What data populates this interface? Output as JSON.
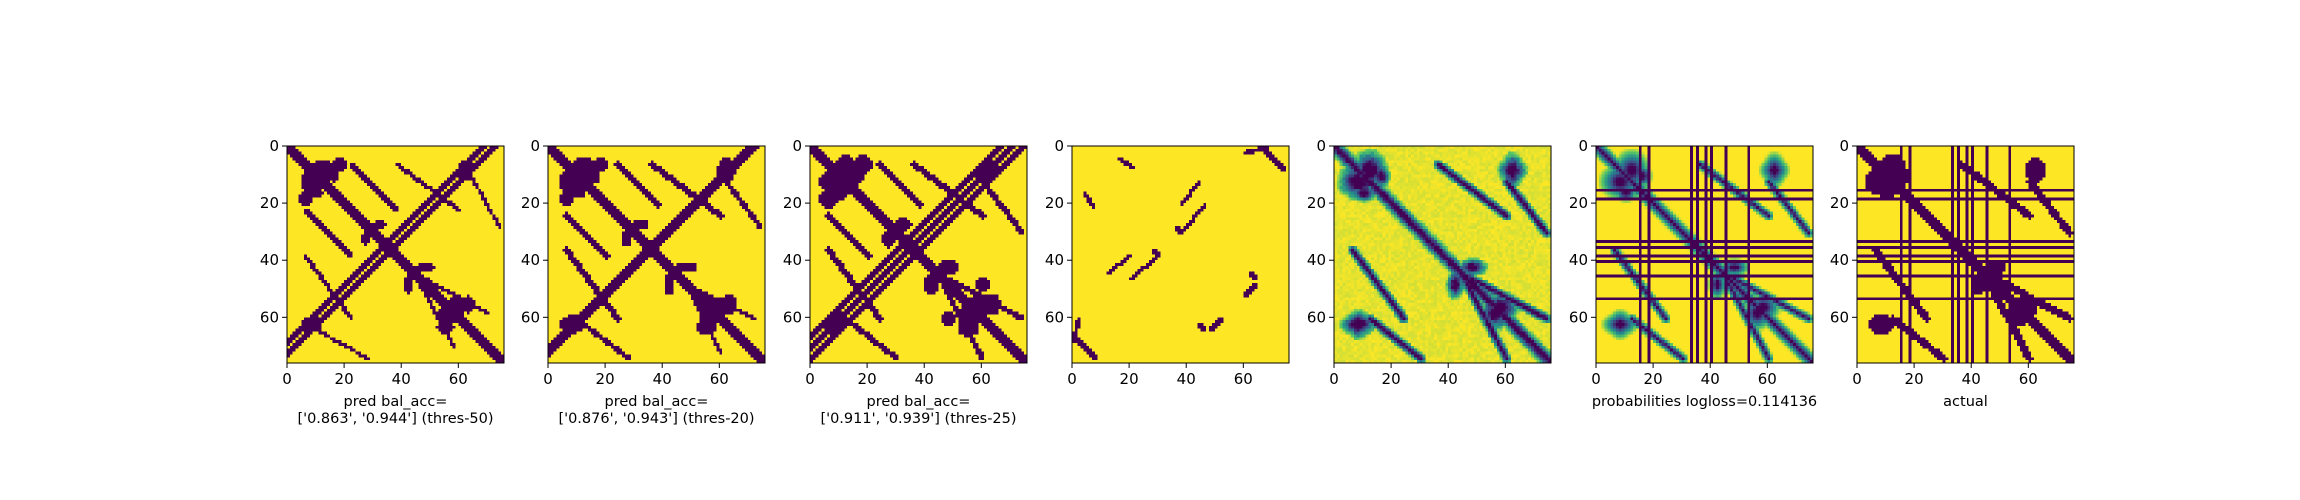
{
  "chart_data": [
    {
      "type": "heatmap",
      "colormap": "binary-viridis",
      "x_ticks": [
        "0",
        "20",
        "40",
        "60"
      ],
      "y_ticks": [
        "0",
        "20",
        "40",
        "60"
      ],
      "extent": [
        0,
        76
      ],
      "xlabel_lines": [
        "pred bal_acc=",
        "['0.863', '0.944'] (thres-50)"
      ],
      "dark_regions": {
        "diagonals": [
          [
            0,
            76,
            2.2
          ],
          [
            68,
            30,
            1.4
          ],
          [
            72,
            8,
            1.2
          ]
        ],
        "blobs": [
          [
            12,
            8,
            4.5,
            5
          ],
          [
            18,
            6,
            3,
            3
          ],
          [
            10,
            16,
            3,
            2
          ],
          [
            58,
            56,
            5,
            4
          ],
          [
            55,
            63,
            4,
            3
          ],
          [
            42,
            48,
            2,
            4
          ],
          [
            27,
            32,
            2,
            3
          ],
          [
            8,
            62,
            5,
            3
          ],
          [
            62,
            8,
            4,
            3
          ]
        ],
        "bands": [
          [
            6,
            22,
            38,
            60,
            1.2
          ],
          [
            22,
            38,
            6,
            22,
            1.2
          ],
          [
            64,
            74,
            10,
            28,
            1
          ],
          [
            44,
            58,
            44,
            70,
            1
          ]
        ]
      }
    },
    {
      "type": "heatmap",
      "colormap": "binary-viridis",
      "x_ticks": [
        "0",
        "20",
        "40",
        "60"
      ],
      "y_ticks": [
        "0",
        "20",
        "40",
        "60"
      ],
      "extent": [
        0,
        76
      ],
      "xlabel_lines": [
        "pred bal_acc=",
        "['0.876', '0.943'] (thres-20)"
      ],
      "dark_regions": {
        "diagonals": [
          [
            0,
            76,
            2.4
          ],
          [
            70,
            28,
            1.6
          ],
          [
            72,
            10,
            1.4
          ]
        ],
        "blobs": [
          [
            12,
            8,
            5,
            6
          ],
          [
            18,
            6,
            3.5,
            3.5
          ],
          [
            10,
            16,
            3.5,
            2.5
          ],
          [
            58,
            56,
            5.5,
            4.5
          ],
          [
            55,
            63,
            4.5,
            3.5
          ],
          [
            42,
            48,
            2.5,
            4.5
          ],
          [
            27,
            32,
            2.5,
            3.5
          ],
          [
            8,
            62,
            5.5,
            3.5
          ],
          [
            62,
            8,
            4.5,
            3.5
          ],
          [
            60,
            10,
            2.5,
            2
          ]
        ],
        "bands": [
          [
            6,
            24,
            36,
            60,
            1.6
          ],
          [
            24,
            38,
            6,
            20,
            1.6
          ],
          [
            62,
            74,
            12,
            28,
            1.3
          ],
          [
            46,
            60,
            44,
            72,
            1.3
          ]
        ]
      }
    },
    {
      "type": "heatmap",
      "colormap": "binary-viridis",
      "x_ticks": [
        "0",
        "20",
        "40",
        "60"
      ],
      "y_ticks": [
        "0",
        "20",
        "40",
        "60"
      ],
      "extent": [
        0,
        76
      ],
      "xlabel_lines": [
        "pred bal_acc=",
        "['0.911', '0.939'] (thres-25)"
      ],
      "dark_regions": {
        "diagonals": [
          [
            0,
            76,
            2.6
          ],
          [
            70,
            28,
            1.8
          ],
          [
            74,
            10,
            1.6
          ],
          [
            66,
            30,
            1.2
          ]
        ],
        "blobs": [
          [
            12,
            8,
            5.5,
            6.5
          ],
          [
            18,
            6,
            4,
            4
          ],
          [
            10,
            16,
            4,
            3
          ],
          [
            58,
            56,
            6,
            5
          ],
          [
            55,
            63,
            5,
            4
          ],
          [
            42,
            48,
            3,
            5
          ],
          [
            27,
            32,
            3,
            4
          ],
          [
            8,
            62,
            6,
            4
          ],
          [
            62,
            8,
            5,
            4
          ],
          [
            60,
            10,
            3,
            2.5
          ],
          [
            48,
            60,
            3,
            3
          ]
        ],
        "bands": [
          [
            6,
            24,
            36,
            60,
            1.8
          ],
          [
            24,
            38,
            6,
            20,
            1.8
          ],
          [
            60,
            74,
            12,
            30,
            1.5
          ],
          [
            44,
            60,
            44,
            74,
            1.5
          ]
        ]
      }
    },
    {
      "type": "heatmap",
      "colormap": "binary-viridis",
      "x_ticks": [
        "0",
        "20",
        "40",
        "60"
      ],
      "y_ticks": [
        "0",
        "20",
        "40",
        "60"
      ],
      "extent": [
        0,
        76
      ],
      "xlabel_lines": [],
      "dark_regions": {
        "segments": [
          [
            0,
            66,
            8,
            74
          ],
          [
            16,
            4,
            21,
            7
          ],
          [
            20,
            46,
            30,
            38
          ],
          [
            36,
            28,
            38,
            30
          ],
          [
            38,
            20,
            44,
            12
          ],
          [
            60,
            2,
            68,
            0
          ],
          [
            48,
            64,
            52,
            60
          ],
          [
            62,
            44,
            64,
            46
          ]
        ]
      }
    },
    {
      "type": "heatmap",
      "colormap": "viridis",
      "x_ticks": [
        "0",
        "20",
        "40",
        "60"
      ],
      "y_ticks": [
        "0",
        "20",
        "40",
        "60"
      ],
      "extent": [
        0,
        76
      ],
      "xlabel_lines": [],
      "intensity": "probabilities (continuous)"
    },
    {
      "type": "heatmap",
      "colormap": "viridis",
      "x_ticks": [
        "0",
        "20",
        "40",
        "60"
      ],
      "y_ticks": [
        "0",
        "20",
        "40",
        "60"
      ],
      "extent": [
        0,
        76
      ],
      "xlabel_lines": [
        "probabilities logloss=0.114136"
      ],
      "full_rows_cols": [
        15,
        18,
        33,
        35,
        38,
        40,
        45,
        53
      ]
    },
    {
      "type": "heatmap",
      "colormap": "binary-viridis",
      "x_ticks": [
        "0",
        "20",
        "40",
        "60"
      ],
      "y_ticks": [
        "0",
        "20",
        "40",
        "60"
      ],
      "extent": [
        0,
        76
      ],
      "xlabel_lines": [
        "actual"
      ],
      "full_rows_cols": [
        15,
        18,
        33,
        35,
        38,
        40,
        45,
        53
      ]
    }
  ],
  "colors": {
    "dark": "#440154",
    "bright": "#fde725",
    "mid1": "#21918c",
    "mid2": "#5ec962",
    "mid3": "#3b528b"
  }
}
